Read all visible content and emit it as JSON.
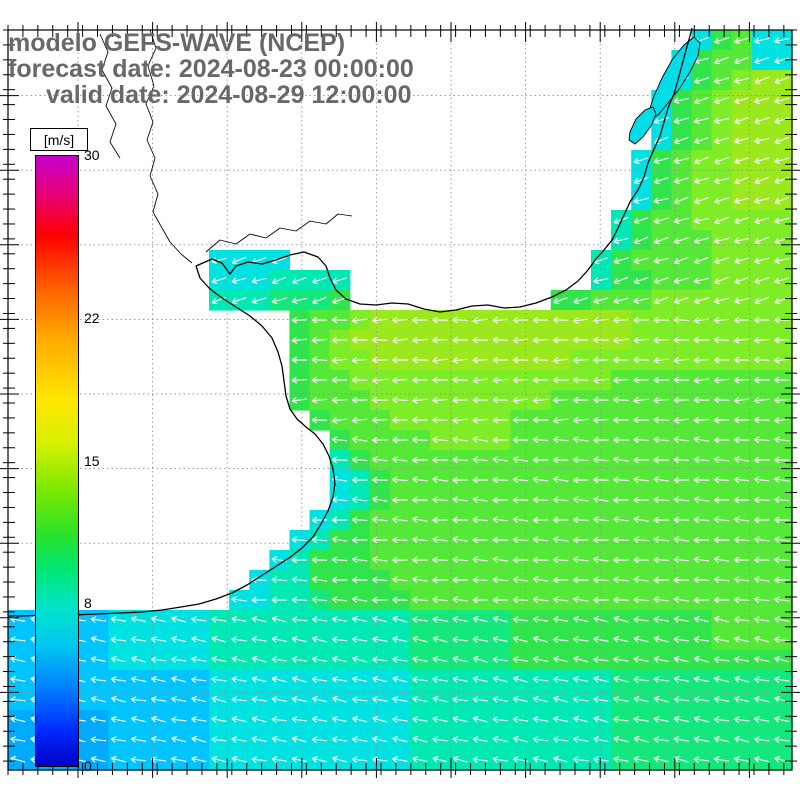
{
  "header": {
    "line1": "modelo GEFS-WAVE (NCEP)",
    "line2": "forecast date: 2024-08-23 00:00:00",
    "line3": "valid date: 2024-08-29 12:00:00"
  },
  "colorbar": {
    "unit": "[m/s]",
    "min": 0,
    "max": 30,
    "tick_labels": [
      {
        "label": "30",
        "value": 30
      },
      {
        "label": "22",
        "value": 22
      },
      {
        "label": "15",
        "value": 15
      },
      {
        "label": "8",
        "value": 8
      },
      {
        "label": "0",
        "value": 0
      }
    ],
    "gradient_stops": [
      {
        "p": 0,
        "c": "#c400cc"
      },
      {
        "p": 6,
        "c": "#e6007a"
      },
      {
        "p": 13,
        "c": "#ff0000"
      },
      {
        "p": 22,
        "c": "#ff6400"
      },
      {
        "p": 30,
        "c": "#ffaa00"
      },
      {
        "p": 40,
        "c": "#ffe600"
      },
      {
        "p": 47,
        "c": "#d8f000"
      },
      {
        "p": 55,
        "c": "#78e800"
      },
      {
        "p": 62,
        "c": "#2ae22a"
      },
      {
        "p": 68,
        "c": "#00e678"
      },
      {
        "p": 74,
        "c": "#00e4c8"
      },
      {
        "p": 80,
        "c": "#00c8f0"
      },
      {
        "p": 87,
        "c": "#0082ff"
      },
      {
        "p": 94,
        "c": "#002cff"
      },
      {
        "p": 100,
        "c": "#0000c8"
      }
    ]
  },
  "chart_data": {
    "type": "heatmap",
    "title": "modelo GEFS-WAVE (NCEP)",
    "units": "m/s",
    "field": "wind speed over ocean with white direction arrows",
    "grid": {
      "ncols": 39,
      "nrows": 37
    },
    "palette": {
      "2": {
        "speed_ms": 5,
        "color": "#00aaff"
      },
      "3": {
        "speed_ms": 6,
        "color": "#00c4ff"
      },
      "4": {
        "speed_ms": 7,
        "color": "#00e2e2"
      },
      "5": {
        "speed_ms": 8,
        "color": "#00e8b4"
      },
      "6": {
        "speed_ms": 9,
        "color": "#14e87c"
      },
      "7": {
        "speed_ms": 10,
        "color": "#32e44c"
      },
      "8": {
        "speed_ms": 11,
        "color": "#55e838"
      },
      "9": {
        "speed_ms": 12,
        "color": "#7eec26"
      },
      "a": {
        "speed_ms": 13,
        "color": "#9ce81e"
      }
    },
    "rows": [
      [
        [
          34,
          "47844"
        ]
      ],
      [
        [
          33,
          "478844"
        ]
      ],
      [
        [
          33,
          "4789aa"
        ]
      ],
      [
        [
          32,
          "4789aaa"
        ]
      ],
      [
        [
          32,
          "4789aaa"
        ]
      ],
      [
        [
          32,
          "4789aaa"
        ]
      ],
      [
        [
          31,
          "47899aaa"
        ]
      ],
      [
        [
          31,
          "47899aaa"
        ]
      ],
      [
        [
          31,
          "47899aaa"
        ]
      ],
      [
        [
          30,
          "578899999"
        ]
      ],
      [
        [
          30,
          "578889999"
        ]
      ],
      [
        [
          10,
          "4444"
        ],
        [
          29,
          "5788889999"
        ]
      ],
      [
        [
          10,
          "4445555"
        ],
        [
          29,
          "5778889999"
        ]
      ],
      [
        [
          10,
          "5556667"
        ],
        [
          27,
          "778889999999"
        ]
      ],
      [
        [
          14,
          "7889aaaaaaaaaaaaa99999999"
        ]
      ],
      [
        [
          14,
          "789aaaaaaaaaaaaaa99999999"
        ]
      ],
      [
        [
          14,
          "7899aaaaaaaaaa99999999999"
        ]
      ],
      [
        [
          14,
          "7889999999999999888888888"
        ]
      ],
      [
        [
          14,
          "7888999999999888888888888"
        ]
      ],
      [
        [
          15,
          "788899999988888888888888"
        ]
      ],
      [
        [
          16,
          "78888999988888888888888"
        ]
      ],
      [
        [
          16,
          "57888888888888888888888"
        ]
      ],
      [
        [
          16,
          "45788888888888888888888"
        ]
      ],
      [
        [
          16,
          "45788888888888888888888"
        ]
      ],
      [
        [
          15,
          "457888888888888888888888"
        ]
      ],
      [
        [
          14,
          "4577888888888888888888888"
        ]
      ],
      [
        [
          13,
          "45777888888888888888888888"
        ]
      ],
      [
        [
          12,
          "455777788888888888888888888"
        ]
      ],
      [
        [
          11,
          "4455677778888888888888888888"
        ]
      ],
      [
        [
          0,
          "333334444455555555556666677777777778888"
        ]
      ],
      [
        [
          0,
          "333334444455555555556666677777777778888"
        ]
      ],
      [
        [
          0,
          "333334444455555555556666677777777777777"
        ]
      ],
      [
        [
          0,
          "333333333344444444445555555555666666666"
        ]
      ],
      [
        [
          0,
          "333333333344444444445555555555666666666"
        ]
      ],
      [
        [
          0,
          "222223333344444444445555555555666666666"
        ]
      ],
      [
        [
          0,
          "222223333344444444445555555555666666666"
        ]
      ],
      [
        [
          0,
          "222223333344444444445555555555666666666"
        ]
      ]
    ],
    "arrow_color": "#ffffff",
    "arrow_zones": [
      {
        "from_row": 0,
        "to_row": 13,
        "deg_from_east": 163
      },
      {
        "from_row": 14,
        "to_row": 19,
        "deg_from_east": 178
      },
      {
        "from_row": 20,
        "to_row": 28,
        "deg_from_east": 184
      },
      {
        "from_row": 29,
        "to_row": 36,
        "deg_from_east": 191
      }
    ]
  }
}
